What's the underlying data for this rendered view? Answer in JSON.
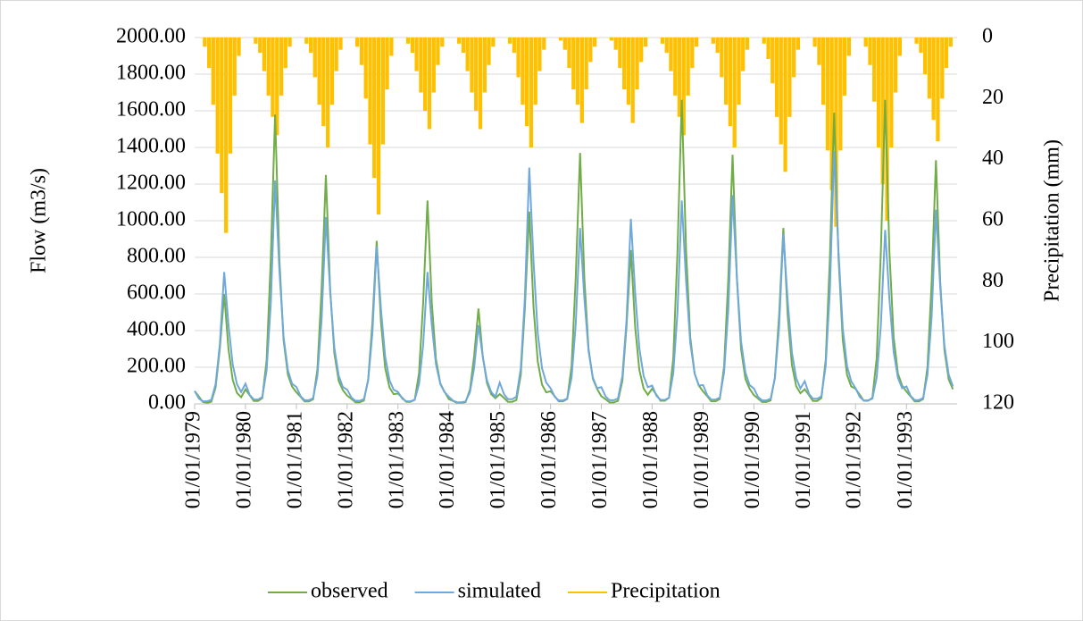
{
  "chart_data": {
    "type": "line",
    "y_label": "Flow (m3/s)",
    "y2_label": "Precipitation (mm)",
    "x": [
      "01/01/1979",
      "01/02/1979",
      "01/03/1979",
      "01/04/1979",
      "01/05/1979",
      "01/06/1979",
      "01/07/1979",
      "01/08/1979",
      "01/09/1979",
      "01/10/1979",
      "01/11/1979",
      "01/12/1979",
      "01/01/1980",
      "01/02/1980",
      "01/03/1980",
      "01/04/1980",
      "01/05/1980",
      "01/06/1980",
      "01/07/1980",
      "01/08/1980",
      "01/09/1980",
      "01/10/1980",
      "01/11/1980",
      "01/12/1980",
      "01/01/1981",
      "01/02/1981",
      "01/03/1981",
      "01/04/1981",
      "01/05/1981",
      "01/06/1981",
      "01/07/1981",
      "01/08/1981",
      "01/09/1981",
      "01/10/1981",
      "01/11/1981",
      "01/12/1981",
      "01/01/1982",
      "01/02/1982",
      "01/03/1982",
      "01/04/1982",
      "01/05/1982",
      "01/06/1982",
      "01/07/1982",
      "01/08/1982",
      "01/09/1982",
      "01/10/1982",
      "01/11/1982",
      "01/12/1982",
      "01/01/1983",
      "01/02/1983",
      "01/03/1983",
      "01/04/1983",
      "01/05/1983",
      "01/06/1983",
      "01/07/1983",
      "01/08/1983",
      "01/09/1983",
      "01/10/1983",
      "01/11/1983",
      "01/12/1983",
      "01/01/1984",
      "01/02/1984",
      "01/03/1984",
      "01/04/1984",
      "01/05/1984",
      "01/06/1984",
      "01/07/1984",
      "01/08/1984",
      "01/09/1984",
      "01/10/1984",
      "01/11/1984",
      "01/12/1984",
      "01/01/1985",
      "01/02/1985",
      "01/03/1985",
      "01/04/1985",
      "01/05/1985",
      "01/06/1985",
      "01/07/1985",
      "01/08/1985",
      "01/09/1985",
      "01/10/1985",
      "01/11/1985",
      "01/12/1985",
      "01/01/1986",
      "01/02/1986",
      "01/03/1986",
      "01/04/1986",
      "01/05/1986",
      "01/06/1986",
      "01/07/1986",
      "01/08/1986",
      "01/09/1986",
      "01/10/1986",
      "01/11/1986",
      "01/12/1986",
      "01/01/1987",
      "01/02/1987",
      "01/03/1987",
      "01/04/1987",
      "01/05/1987",
      "01/06/1987",
      "01/07/1987",
      "01/08/1987",
      "01/09/1987",
      "01/10/1987",
      "01/11/1987",
      "01/12/1987",
      "01/01/1988",
      "01/02/1988",
      "01/03/1988",
      "01/04/1988",
      "01/05/1988",
      "01/06/1988",
      "01/07/1988",
      "01/08/1988",
      "01/09/1988",
      "01/10/1988",
      "01/11/1988",
      "01/12/1988",
      "01/01/1989",
      "01/02/1989",
      "01/03/1989",
      "01/04/1989",
      "01/05/1989",
      "01/06/1989",
      "01/07/1989",
      "01/08/1989",
      "01/09/1989",
      "01/10/1989",
      "01/11/1989",
      "01/12/1989",
      "01/01/1990",
      "01/02/1990",
      "01/03/1990",
      "01/04/1990",
      "01/05/1990",
      "01/06/1990",
      "01/07/1990",
      "01/08/1990",
      "01/09/1990",
      "01/10/1990",
      "01/11/1990",
      "01/12/1990",
      "01/01/1991",
      "01/02/1991",
      "01/03/1991",
      "01/04/1991",
      "01/05/1991",
      "01/06/1991",
      "01/07/1991",
      "01/08/1991",
      "01/09/1991",
      "01/10/1991",
      "01/11/1991",
      "01/12/1991",
      "01/01/1992",
      "01/02/1992",
      "01/03/1992",
      "01/04/1992",
      "01/05/1992",
      "01/06/1992",
      "01/07/1992",
      "01/08/1992",
      "01/09/1992",
      "01/10/1992",
      "01/11/1992",
      "01/12/1992",
      "01/01/1993",
      "01/02/1993",
      "01/03/1993",
      "01/04/1993",
      "01/05/1993",
      "01/06/1993",
      "01/07/1993",
      "01/08/1993",
      "01/09/1993",
      "01/10/1993",
      "01/11/1993",
      "01/12/1993"
    ],
    "series": [
      {
        "name": "observed",
        "color": "#70ad47",
        "values": [
          70,
          40,
          10,
          6,
          12,
          90,
          300,
          600,
          300,
          132,
          60,
          36,
          79,
          47,
          16,
          16,
          32,
          237,
          790,
          1580,
          790,
          348,
          158,
          95,
          63,
          38,
          13,
          13,
          25,
          188,
          625,
          1250,
          625,
          275,
          125,
          75,
          45,
          27,
          9,
          9,
          18,
          134,
          445,
          890,
          445,
          196,
          89,
          53,
          56,
          33,
          11,
          11,
          22,
          167,
          555,
          1110,
          555,
          244,
          111,
          67,
          26,
          16,
          5,
          5,
          10,
          78,
          260,
          520,
          260,
          114,
          52,
          31,
          53,
          32,
          11,
          11,
          21,
          158,
          525,
          1050,
          525,
          231,
          105,
          63,
          69,
          41,
          14,
          14,
          27,
          206,
          685,
          1370,
          685,
          301,
          137,
          82,
          42,
          25,
          8,
          8,
          17,
          126,
          420,
          840,
          420,
          185,
          84,
          50,
          83,
          50,
          17,
          17,
          33,
          249,
          830,
          1660,
          830,
          365,
          166,
          100,
          68,
          41,
          14,
          14,
          27,
          204,
          680,
          1360,
          680,
          299,
          136,
          82,
          48,
          29,
          10,
          10,
          19,
          144,
          480,
          960,
          480,
          211,
          96,
          58,
          80,
          48,
          16,
          16,
          32,
          239,
          795,
          1590,
          795,
          350,
          159,
          95,
          83,
          50,
          17,
          17,
          33,
          249,
          830,
          1660,
          830,
          365,
          166,
          100,
          67,
          40,
          13,
          13,
          27,
          200,
          665,
          1330,
          665,
          293,
          133,
          80
        ]
      },
      {
        "name": "simulated",
        "color": "#6fa8dc",
        "values": [
          70,
          29,
          14,
          14,
          22,
          108,
          324,
          720,
          432,
          216,
          108,
          65,
          110,
          49,
          24,
          24,
          37,
          183,
          549,
          1220,
          732,
          366,
          183,
          110,
          92,
          41,
          20,
          20,
          31,
          153,
          459,
          1020,
          612,
          306,
          153,
          92,
          77,
          34,
          17,
          17,
          26,
          129,
          387,
          860,
          516,
          258,
          129,
          77,
          65,
          29,
          14,
          14,
          22,
          108,
          324,
          720,
          432,
          216,
          108,
          65,
          39,
          17,
          9,
          9,
          13,
          65,
          194,
          430,
          258,
          129,
          65,
          39,
          116,
          52,
          26,
          26,
          39,
          194,
          581,
          1290,
          774,
          387,
          194,
          116,
          86,
          38,
          19,
          19,
          29,
          144,
          432,
          960,
          576,
          288,
          144,
          86,
          91,
          40,
          20,
          20,
          30,
          152,
          455,
          1010,
          606,
          303,
          152,
          91,
          100,
          44,
          22,
          22,
          33,
          167,
          500,
          1110,
          666,
          333,
          167,
          100,
          103,
          46,
          23,
          23,
          34,
          171,
          513,
          1140,
          684,
          342,
          171,
          103,
          84,
          37,
          19,
          19,
          28,
          140,
          419,
          930,
          558,
          279,
          140,
          84,
          124,
          55,
          28,
          28,
          41,
          207,
          621,
          1380,
          828,
          414,
          207,
          124,
          86,
          38,
          19,
          19,
          29,
          143,
          428,
          950,
          570,
          285,
          143,
          86,
          95,
          42,
          21,
          21,
          32,
          159,
          477,
          1060,
          636,
          318,
          159,
          95
        ]
      },
      {
        "name": "Precipitation",
        "color": "#ffc000",
        "axis": "y2",
        "type": "bar",
        "values": [
          0,
          0,
          3,
          10,
          22,
          38,
          51,
          64,
          38,
          19,
          6,
          0,
          0,
          0,
          2,
          5,
          11,
          19,
          26,
          32,
          19,
          10,
          3,
          0,
          0,
          0,
          2,
          5,
          13,
          22,
          29,
          36,
          22,
          11,
          4,
          0,
          0,
          0,
          3,
          9,
          20,
          35,
          46,
          58,
          35,
          17,
          6,
          0,
          0,
          0,
          2,
          5,
          11,
          18,
          24,
          30,
          18,
          9,
          3,
          0,
          0,
          0,
          2,
          5,
          11,
          18,
          24,
          30,
          18,
          9,
          3,
          0,
          0,
          0,
          2,
          5,
          13,
          22,
          29,
          36,
          22,
          11,
          4,
          0,
          0,
          0,
          1,
          4,
          10,
          17,
          22,
          28,
          17,
          8,
          3,
          0,
          0,
          0,
          1,
          4,
          10,
          17,
          22,
          28,
          17,
          8,
          3,
          0,
          0,
          0,
          2,
          5,
          11,
          19,
          26,
          32,
          19,
          10,
          3,
          0,
          0,
          0,
          2,
          5,
          13,
          22,
          29,
          36,
          22,
          11,
          4,
          0,
          0,
          0,
          2,
          7,
          15,
          26,
          35,
          44,
          26,
          13,
          4,
          0,
          0,
          0,
          3,
          9,
          22,
          37,
          50,
          62,
          37,
          19,
          6,
          0,
          0,
          0,
          3,
          9,
          21,
          36,
          48,
          60,
          36,
          18,
          6,
          0,
          0,
          0,
          2,
          5,
          12,
          20,
          27,
          34,
          20,
          10,
          3,
          0
        ]
      }
    ],
    "xlim": [
      "01/01/1979",
      "31/12/1993"
    ],
    "xticks": [
      "01/01/1979",
      "01/01/1980",
      "01/01/1981",
      "01/01/1982",
      "01/01/1983",
      "01/01/1984",
      "01/01/1985",
      "01/01/1986",
      "01/01/1987",
      "01/01/1988",
      "01/01/1989",
      "01/01/1990",
      "01/01/1991",
      "01/01/1992",
      "01/01/1993"
    ],
    "ylim": [
      0,
      2000
    ],
    "yticks": [
      {
        "value": 0,
        "label": "0.00"
      },
      {
        "value": 200,
        "label": "200.00"
      },
      {
        "value": 400,
        "label": "400.00"
      },
      {
        "value": 600,
        "label": "600.00"
      },
      {
        "value": 800,
        "label": "800.00"
      },
      {
        "value": 1000,
        "label": "1000.00"
      },
      {
        "value": 1200,
        "label": "1200.00"
      },
      {
        "value": 1400,
        "label": "1400.00"
      },
      {
        "value": 1600,
        "label": "1600.00"
      },
      {
        "value": 1800,
        "label": "1800.00"
      },
      {
        "value": 2000,
        "label": "2000.00"
      }
    ],
    "y2lim": [
      120,
      0
    ],
    "y2ticks": [
      0,
      20,
      40,
      60,
      80,
      100,
      120
    ],
    "grid": true,
    "legend": "bottom"
  }
}
